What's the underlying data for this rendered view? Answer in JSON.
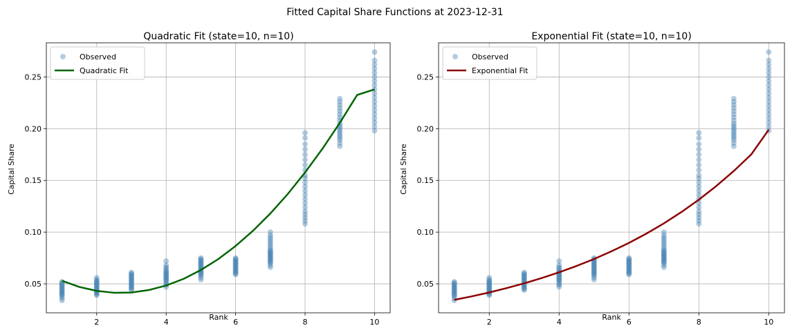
{
  "figure": {
    "suptitle": "Fitted Capital Share Functions at 2023-12-31"
  },
  "colors": {
    "observed": "#4682b4",
    "quadratic": "#006400",
    "exponential": "#8b0000",
    "grid": "#b0b0b0"
  },
  "chart_data": [
    {
      "type": "scatter",
      "title": "Quadratic Fit (state=10, n=10)",
      "xlabel": "Rank",
      "ylabel": "Capital Share",
      "xlim": [
        0.55,
        10.45
      ],
      "ylim": [
        0.022,
        0.283
      ],
      "xticks": [
        2,
        4,
        6,
        8,
        10
      ],
      "yticks": [
        0.05,
        0.1,
        0.15,
        0.2,
        0.25
      ],
      "ytick_labels": [
        "0.05",
        "0.10",
        "0.15",
        "0.20",
        "0.25"
      ],
      "grid": true,
      "legend": {
        "placement": "upper-left",
        "entries": [
          "Observed",
          "Quadratic Fit"
        ]
      },
      "series": [
        {
          "name": "Observed",
          "kind": "scatter",
          "points": [
            {
              "x": 1,
              "y": [
                0.034,
                0.036,
                0.038,
                0.039,
                0.04,
                0.041,
                0.042,
                0.043,
                0.044,
                0.045,
                0.046,
                0.047,
                0.048,
                0.049,
                0.05,
                0.051,
                0.052
              ]
            },
            {
              "x": 2,
              "y": [
                0.039,
                0.04,
                0.041,
                0.042,
                0.043,
                0.044,
                0.045,
                0.046,
                0.047,
                0.048,
                0.049,
                0.05,
                0.051,
                0.052,
                0.053,
                0.054,
                0.056
              ]
            },
            {
              "x": 3,
              "y": [
                0.044,
                0.045,
                0.046,
                0.047,
                0.048,
                0.049,
                0.05,
                0.051,
                0.052,
                0.053,
                0.054,
                0.055,
                0.056,
                0.057,
                0.058,
                0.059,
                0.06,
                0.061
              ]
            },
            {
              "x": 4,
              "y": [
                0.047,
                0.049,
                0.05,
                0.052,
                0.053,
                0.054,
                0.055,
                0.056,
                0.057,
                0.058,
                0.059,
                0.06,
                0.061,
                0.062,
                0.063,
                0.065,
                0.066,
                0.068,
                0.072
              ]
            },
            {
              "x": 5,
              "y": [
                0.054,
                0.056,
                0.058,
                0.059,
                0.06,
                0.061,
                0.062,
                0.063,
                0.064,
                0.065,
                0.066,
                0.067,
                0.068,
                0.069,
                0.07,
                0.071,
                0.072,
                0.073,
                0.074,
                0.075
              ]
            },
            {
              "x": 6,
              "y": [
                0.059,
                0.06,
                0.061,
                0.062,
                0.063,
                0.064,
                0.065,
                0.066,
                0.067,
                0.068,
                0.069,
                0.07,
                0.071,
                0.072,
                0.073,
                0.074,
                0.075
              ]
            },
            {
              "x": 7,
              "y": [
                0.066,
                0.068,
                0.07,
                0.071,
                0.072,
                0.073,
                0.074,
                0.075,
                0.076,
                0.077,
                0.078,
                0.079,
                0.08,
                0.081,
                0.082,
                0.083,
                0.085,
                0.087,
                0.089,
                0.091,
                0.093,
                0.095,
                0.097,
                0.1
              ]
            },
            {
              "x": 8,
              "y": [
                0.108,
                0.111,
                0.114,
                0.117,
                0.12,
                0.124,
                0.128,
                0.132,
                0.136,
                0.14,
                0.144,
                0.148,
                0.152,
                0.155,
                0.16,
                0.165,
                0.17,
                0.175,
                0.18,
                0.185,
                0.191,
                0.196
              ]
            },
            {
              "x": 9,
              "y": [
                0.183,
                0.186,
                0.189,
                0.191,
                0.193,
                0.195,
                0.197,
                0.199,
                0.201,
                0.203,
                0.205,
                0.208,
                0.211,
                0.214,
                0.217,
                0.22,
                0.223,
                0.226,
                0.229
              ]
            },
            {
              "x": 10,
              "y": [
                0.198,
                0.202,
                0.206,
                0.21,
                0.214,
                0.218,
                0.222,
                0.226,
                0.23,
                0.234,
                0.238,
                0.242,
                0.246,
                0.25,
                0.254,
                0.258,
                0.262,
                0.266,
                0.274
              ]
            }
          ]
        },
        {
          "name": "Quadratic Fit",
          "kind": "line",
          "x": [
            1.0,
            1.5,
            2.0,
            2.5,
            3.0,
            3.5,
            4.0,
            4.5,
            5.0,
            5.5,
            6.0,
            6.5,
            7.0,
            7.5,
            8.0,
            8.5,
            9.0,
            9.5,
            10.0
          ],
          "y": [
            0.053,
            0.047,
            0.0432,
            0.0414,
            0.0416,
            0.044,
            0.0484,
            0.0548,
            0.0634,
            0.0739,
            0.0866,
            0.1013,
            0.118,
            0.1368,
            0.1577,
            0.1806,
            0.2056,
            0.2326,
            0.238
          ]
        }
      ]
    },
    {
      "type": "scatter",
      "title": "Exponential Fit (state=10, n=10)",
      "xlabel": "Rank",
      "ylabel": "Capital Share",
      "xlim": [
        0.55,
        10.45
      ],
      "ylim": [
        0.022,
        0.283
      ],
      "xticks": [
        2,
        4,
        6,
        8,
        10
      ],
      "yticks": [
        0.05,
        0.1,
        0.15,
        0.2,
        0.25
      ],
      "ytick_labels": [
        "0.05",
        "0.10",
        "0.15",
        "0.20",
        "0.25"
      ],
      "grid": true,
      "legend": {
        "placement": "upper-left",
        "entries": [
          "Observed",
          "Exponential Fit"
        ]
      },
      "series": [
        {
          "name": "Observed",
          "kind": "scatter",
          "points": [
            {
              "x": 1,
              "y": [
                0.034,
                0.036,
                0.038,
                0.039,
                0.04,
                0.041,
                0.042,
                0.043,
                0.044,
                0.045,
                0.046,
                0.047,
                0.048,
                0.049,
                0.05,
                0.051,
                0.052
              ]
            },
            {
              "x": 2,
              "y": [
                0.039,
                0.04,
                0.041,
                0.042,
                0.043,
                0.044,
                0.045,
                0.046,
                0.047,
                0.048,
                0.049,
                0.05,
                0.051,
                0.052,
                0.053,
                0.054,
                0.056
              ]
            },
            {
              "x": 3,
              "y": [
                0.044,
                0.045,
                0.046,
                0.047,
                0.048,
                0.049,
                0.05,
                0.051,
                0.052,
                0.053,
                0.054,
                0.055,
                0.056,
                0.057,
                0.058,
                0.059,
                0.06,
                0.061
              ]
            },
            {
              "x": 4,
              "y": [
                0.047,
                0.049,
                0.05,
                0.052,
                0.053,
                0.054,
                0.055,
                0.056,
                0.057,
                0.058,
                0.059,
                0.06,
                0.061,
                0.062,
                0.063,
                0.065,
                0.066,
                0.068,
                0.072
              ]
            },
            {
              "x": 5,
              "y": [
                0.054,
                0.056,
                0.058,
                0.059,
                0.06,
                0.061,
                0.062,
                0.063,
                0.064,
                0.065,
                0.066,
                0.067,
                0.068,
                0.069,
                0.07,
                0.071,
                0.072,
                0.073,
                0.074,
                0.075
              ]
            },
            {
              "x": 6,
              "y": [
                0.059,
                0.06,
                0.061,
                0.062,
                0.063,
                0.064,
                0.065,
                0.066,
                0.067,
                0.068,
                0.069,
                0.07,
                0.071,
                0.072,
                0.073,
                0.074,
                0.075
              ]
            },
            {
              "x": 7,
              "y": [
                0.066,
                0.068,
                0.07,
                0.071,
                0.072,
                0.073,
                0.074,
                0.075,
                0.076,
                0.077,
                0.078,
                0.079,
                0.08,
                0.081,
                0.082,
                0.083,
                0.085,
                0.087,
                0.089,
                0.091,
                0.093,
                0.095,
                0.097,
                0.1
              ]
            },
            {
              "x": 8,
              "y": [
                0.108,
                0.111,
                0.114,
                0.117,
                0.12,
                0.124,
                0.128,
                0.132,
                0.136,
                0.14,
                0.144,
                0.148,
                0.152,
                0.155,
                0.16,
                0.165,
                0.17,
                0.175,
                0.18,
                0.185,
                0.191,
                0.196
              ]
            },
            {
              "x": 9,
              "y": [
                0.183,
                0.186,
                0.189,
                0.191,
                0.193,
                0.195,
                0.197,
                0.199,
                0.201,
                0.203,
                0.205,
                0.208,
                0.211,
                0.214,
                0.217,
                0.22,
                0.223,
                0.226,
                0.229
              ]
            },
            {
              "x": 10,
              "y": [
                0.198,
                0.202,
                0.206,
                0.21,
                0.214,
                0.218,
                0.222,
                0.226,
                0.23,
                0.234,
                0.238,
                0.242,
                0.246,
                0.25,
                0.254,
                0.258,
                0.262,
                0.266,
                0.274
              ]
            }
          ]
        },
        {
          "name": "Exponential Fit",
          "kind": "line",
          "x": [
            1.0,
            1.5,
            2.0,
            2.5,
            3.0,
            3.5,
            4.0,
            4.5,
            5.0,
            5.5,
            6.0,
            6.5,
            7.0,
            7.5,
            8.0,
            8.5,
            9.0,
            9.5,
            10.0
          ],
          "y": [
            0.0345,
            0.0379,
            0.0417,
            0.0459,
            0.0505,
            0.0556,
            0.0612,
            0.0673,
            0.074,
            0.0815,
            0.0896,
            0.0986,
            0.1085,
            0.1194,
            0.1314,
            0.1446,
            0.1591,
            0.1751,
            0.199
          ]
        }
      ]
    }
  ]
}
